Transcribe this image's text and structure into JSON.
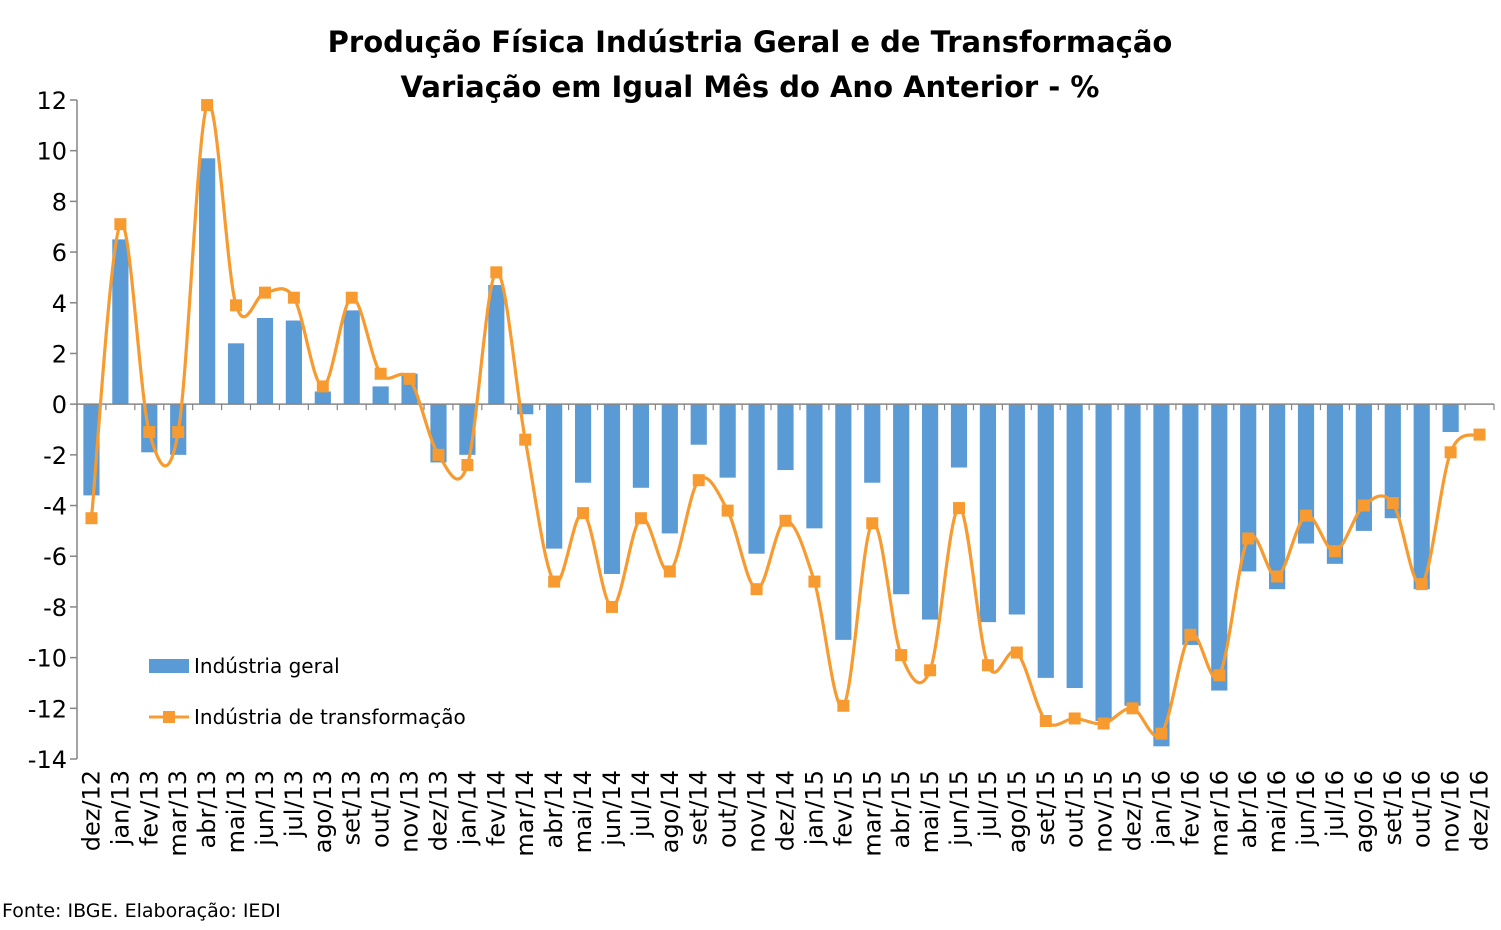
{
  "chart_data": {
    "type": "bar",
    "title": "Produção Física Indústria Geral e de Transformação",
    "subtitle": "Variação em Igual Mês do Ano Anterior - %",
    "ylim": [
      -14,
      12
    ],
    "yticks": [
      "12",
      "10",
      "8",
      "6",
      "4",
      "2",
      "0",
      "-2",
      "-4",
      "-6",
      "-8",
      "-10",
      "-12",
      "-14"
    ],
    "categories": [
      "dez/12",
      "jan/13",
      "fev/13",
      "mar/13",
      "abr/13",
      "mai/13",
      "jun/13",
      "jul/13",
      "ago/13",
      "set/13",
      "out/13",
      "nov/13",
      "dez/13",
      "jan/14",
      "fev/14",
      "mar/14",
      "abr/14",
      "mai/14",
      "jun/14",
      "jul/14",
      "ago/14",
      "set/14",
      "out/14",
      "nov/14",
      "dez/14",
      "jan/15",
      "fev/15",
      "mar/15",
      "abr/15",
      "mai/15",
      "jun/15",
      "jul/15",
      "ago/15",
      "set/15",
      "out/15",
      "nov/15",
      "dez/15",
      "jan/16",
      "fev/16",
      "mar/16",
      "abr/16",
      "mai/16",
      "jun/16",
      "jul/16",
      "ago/16",
      "set/16",
      "out/16",
      "nov/16",
      "dez/16"
    ],
    "grid": false,
    "legend_position": "bottom-left, inside plot",
    "series": [
      {
        "name": "Indústria geral",
        "type": "bar",
        "color": "#5B9BD5",
        "values": [
          -3.6,
          6.5,
          -1.9,
          -2.0,
          9.7,
          2.4,
          3.4,
          3.3,
          0.5,
          3.7,
          0.7,
          1.2,
          -2.3,
          -2.0,
          4.7,
          -0.4,
          -5.7,
          -3.1,
          -6.7,
          -3.3,
          -5.1,
          -1.6,
          -2.9,
          -5.9,
          -2.6,
          -4.9,
          -9.3,
          -3.1,
          -7.5,
          -8.5,
          -2.5,
          -8.6,
          -8.3,
          -10.8,
          -11.2,
          -12.5,
          -11.9,
          -13.5,
          -9.5,
          -11.3,
          -6.6,
          -7.3,
          -5.5,
          -6.3,
          -5.0,
          -4.5,
          -7.3,
          -1.1,
          null
        ]
      },
      {
        "name": "Indústria de transformação",
        "type": "line",
        "color": "#F79B30",
        "values": [
          -4.5,
          7.1,
          -1.1,
          -1.1,
          11.8,
          3.9,
          4.4,
          4.2,
          0.7,
          4.2,
          1.2,
          1.0,
          -2.0,
          -2.4,
          5.2,
          -1.4,
          -7.0,
          -4.3,
          -8.0,
          -4.5,
          -6.6,
          -3.0,
          -4.2,
          -7.3,
          -4.6,
          -7.0,
          -11.9,
          -4.7,
          -9.9,
          -10.5,
          -4.1,
          -10.3,
          -9.8,
          -12.5,
          -12.4,
          -12.6,
          -12.0,
          -13.0,
          -9.1,
          -10.7,
          -5.3,
          -6.8,
          -4.4,
          -5.8,
          -4.0,
          -3.9,
          -7.1,
          -1.9,
          -1.2
        ]
      }
    ]
  },
  "source_note": "Fonte: IBGE. Elaboração: IEDI"
}
